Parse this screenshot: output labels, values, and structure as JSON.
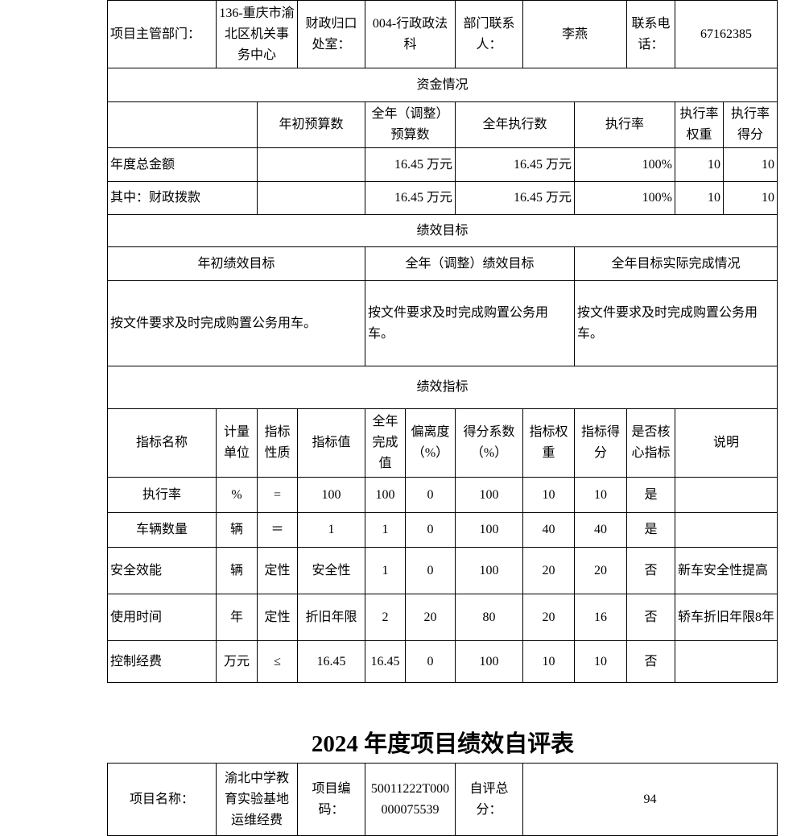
{
  "project_info": {
    "dept_label": "项目主管部门：",
    "dept_value": "136-重庆市渝北区机关事务中心",
    "finance_label": "财政归口处室：",
    "finance_value": "004-行政政法科",
    "contact_label": "部门联系人：",
    "contact_value": "李燕",
    "phone_label": "联系电话：",
    "phone_value": "67162385"
  },
  "funds": {
    "section_title": "资金情况",
    "headers": [
      "",
      "年初预算数",
      "全年（调整）预算数",
      "全年执行数",
      "执行率",
      "执行率权重",
      "执行率得分"
    ],
    "rows": [
      [
        "年度总金额",
        "",
        "16.45 万元",
        "16.45 万元",
        "100%",
        "10",
        "10"
      ],
      [
        "其中：财政拨款",
        "",
        "16.45 万元",
        "16.45 万元",
        "100%",
        "10",
        "10"
      ]
    ]
  },
  "targets": {
    "section_title": "绩效目标",
    "headers": [
      "年初绩效目标",
      "全年（调整）绩效目标",
      "全年目标实际完成情况"
    ],
    "values": [
      "按文件要求及时完成购置公务用车。",
      "按文件要求及时完成购置公务用车。",
      "按文件要求及时完成购置公务用车。"
    ]
  },
  "indicators": {
    "section_title": "绩效指标",
    "headers": [
      "指标名称",
      "计量单位",
      "指标性质",
      "指标值",
      "全年完成值",
      "偏离度（%）",
      "得分系数（%）",
      "指标权重",
      "指标得分",
      "是否核心指标",
      "说明"
    ],
    "rows": [
      [
        "执行率",
        "%",
        "=",
        "100",
        "100",
        "0",
        "100",
        "10",
        "10",
        "是",
        ""
      ],
      [
        "车辆数量",
        "辆",
        "＝",
        "1",
        "1",
        "0",
        "100",
        "40",
        "40",
        "是",
        ""
      ],
      [
        "安全效能",
        "辆",
        "定性",
        "安全性",
        "1",
        "0",
        "100",
        "20",
        "20",
        "否",
        "新车安全性提高"
      ],
      [
        "使用时间",
        "年",
        "定性",
        "折旧年限",
        "2",
        "20",
        "80",
        "20",
        "16",
        "否",
        "轿车折旧年限8年"
      ],
      [
        "控制经费",
        "万元",
        "≤",
        "16.45",
        "16.45",
        "0",
        "100",
        "10",
        "10",
        "否",
        ""
      ]
    ]
  },
  "second_form": {
    "title": "2024 年度项目绩效自评表",
    "name_label": "项目名称：",
    "name_value": "渝北中学教育实验基地运维经费",
    "code_label": "项目编码：",
    "code_value": "50011222T000000075539",
    "score_label": "自评总分：",
    "score_value": "94"
  }
}
